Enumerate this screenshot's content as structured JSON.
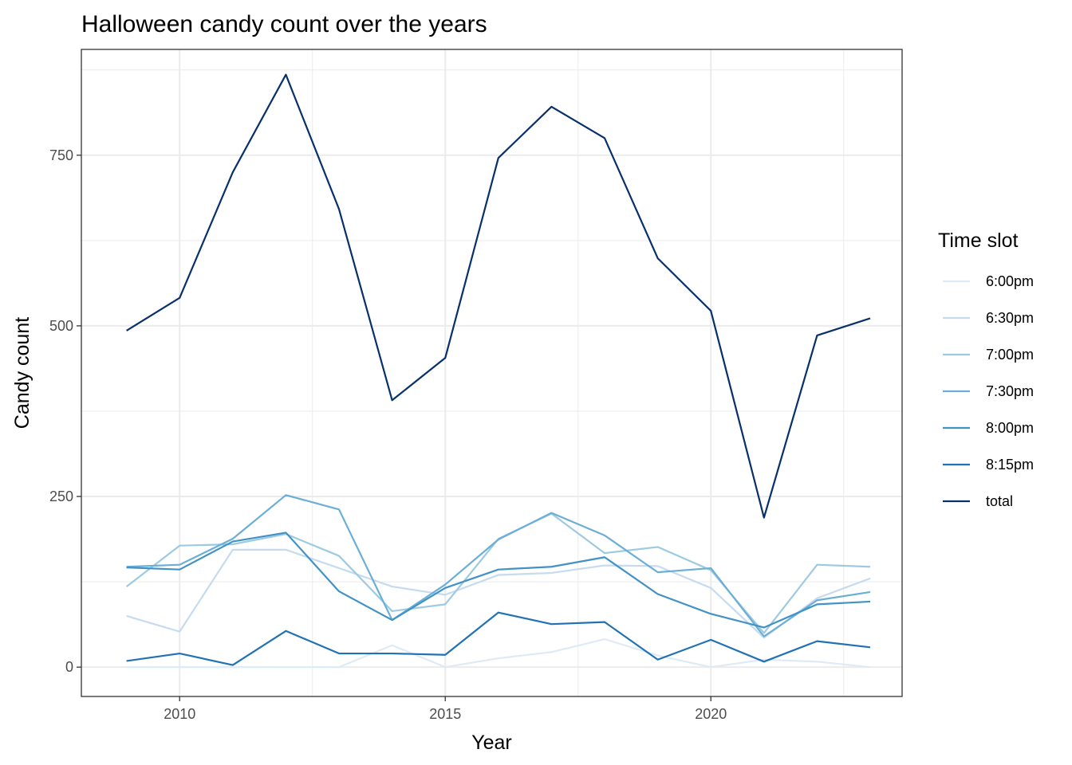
{
  "chart_data": {
    "type": "line",
    "title": "Halloween candy count over the years",
    "xlabel": "Year",
    "ylabel": "Candy count",
    "x": [
      2009,
      2010,
      2011,
      2012,
      2013,
      2014,
      2015,
      2016,
      2017,
      2018,
      2019,
      2020,
      2021,
      2022,
      2023
    ],
    "xlim": [
      2008.15,
      2023.6
    ],
    "ylim": [
      -43,
      905
    ],
    "x_ticks": [
      2010,
      2015,
      2020
    ],
    "x_tick_labels": [
      "2010",
      "2015",
      "2020"
    ],
    "x_minor_ticks": [
      2012.5,
      2017.5,
      2022.5
    ],
    "y_ticks": [
      0,
      250,
      500,
      750
    ],
    "y_tick_labels": [
      "0",
      "250",
      "500",
      "750"
    ],
    "y_minor_ticks": [
      125,
      375,
      625,
      875
    ],
    "grid": true,
    "legend": {
      "title": "Time slot",
      "position": "right"
    },
    "series": [
      {
        "name": "6:00pm",
        "color": "#deebf7",
        "values": [
          0,
          0,
          0,
          0,
          0,
          32,
          0,
          13,
          22,
          41,
          17,
          0,
          11,
          8,
          0
        ]
      },
      {
        "name": "6:30pm",
        "color": "#c6dbef",
        "values": [
          75,
          52,
          172,
          172,
          145,
          118,
          106,
          135,
          138,
          149,
          148,
          116,
          43,
          101,
          130
        ]
      },
      {
        "name": "7:00pm",
        "color": "#9ecae1",
        "values": [
          118,
          178,
          180,
          195,
          163,
          82,
          92,
          188,
          225,
          167,
          176,
          142,
          50,
          150,
          147
        ]
      },
      {
        "name": "7:30pm",
        "color": "#6baed6",
        "values": [
          147,
          150,
          188,
          252,
          231,
          69,
          121,
          187,
          226,
          193,
          139,
          145,
          45,
          98,
          110
        ]
      },
      {
        "name": "8:00pm",
        "color": "#4292c6",
        "values": [
          146,
          143,
          184,
          197,
          111,
          69,
          116,
          143,
          147,
          161,
          107,
          78,
          58,
          92,
          96
        ]
      },
      {
        "name": "8:15pm",
        "color": "#2171b5",
        "values": [
          9,
          20,
          3,
          53,
          20,
          20,
          18,
          80,
          63,
          66,
          11,
          40,
          8,
          38,
          29
        ]
      },
      {
        "name": "total",
        "color": "#08306b",
        "values": [
          493,
          541,
          725,
          868,
          671,
          391,
          453,
          746,
          821,
          775,
          599,
          522,
          219,
          486,
          511
        ]
      }
    ]
  }
}
